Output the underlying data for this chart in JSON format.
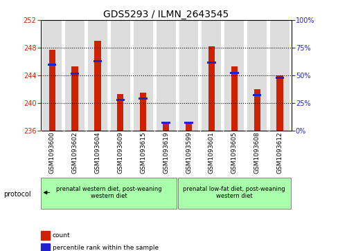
{
  "title": "GDS5293 / ILMN_2643545",
  "samples": [
    "GSM1093600",
    "GSM1093602",
    "GSM1093604",
    "GSM1093609",
    "GSM1093615",
    "GSM1093619",
    "GSM1093599",
    "GSM1093601",
    "GSM1093605",
    "GSM1093608",
    "GSM1093612"
  ],
  "red_values": [
    247.7,
    245.3,
    249.0,
    241.3,
    241.5,
    237.3,
    237.3,
    248.2,
    245.3,
    242.0,
    244.0
  ],
  "blue_values": [
    245.5,
    244.2,
    246.0,
    240.4,
    240.6,
    237.15,
    237.15,
    245.8,
    244.3,
    241.1,
    243.6
  ],
  "base": 236,
  "ylim_left": [
    236,
    252
  ],
  "ylim_right": [
    0,
    100
  ],
  "yticks_left": [
    236,
    240,
    244,
    248,
    252
  ],
  "yticks_right": [
    0,
    25,
    50,
    75,
    100
  ],
  "group_configs": [
    {
      "start": 0,
      "end": 5,
      "color": "#aaffaa",
      "label": "prenatal western diet, post-weaning\nwestern diet"
    },
    {
      "start": 6,
      "end": 10,
      "color": "#aaffaa",
      "label": "prenatal low-fat diet, post-weaning\nwestern diet"
    }
  ],
  "protocol_label": "protocol",
  "legend_items": [
    {
      "color": "#cc2200",
      "label": "count"
    },
    {
      "color": "#2222cc",
      "label": "percentile rank within the sample"
    }
  ],
  "red_color": "#cc2200",
  "blue_color": "#2222cc",
  "bg_color": "#ffffff",
  "col_bg_color": "#dddddd",
  "title_fontsize": 10,
  "tick_fontsize": 7,
  "label_fontsize": 7
}
